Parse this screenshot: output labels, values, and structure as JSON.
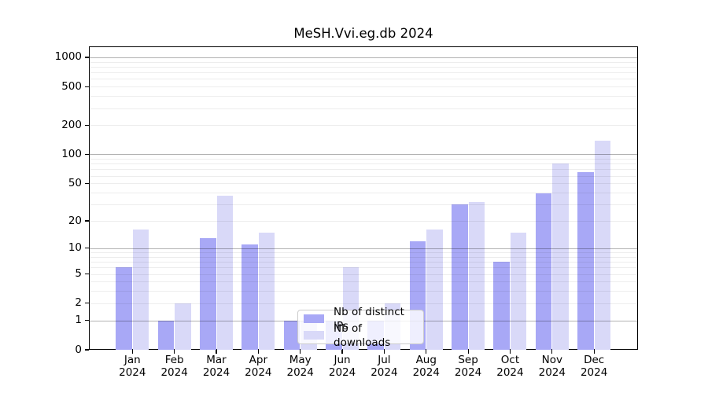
{
  "title": "MeSH.Vvi.eg.db 2024",
  "chart_data": {
    "type": "bar",
    "title": "MeSH.Vvi.eg.db 2024",
    "year": "2024",
    "categories": [
      "Jan",
      "Feb",
      "Mar",
      "Apr",
      "May",
      "Jun",
      "Jul",
      "Aug",
      "Sep",
      "Oct",
      "Nov",
      "Dec"
    ],
    "series": [
      {
        "name": "Nb of distinct IPs",
        "color": "#a8a8f6",
        "values": [
          6,
          1,
          13,
          11,
          1,
          1,
          1,
          12,
          30,
          7,
          39,
          66
        ]
      },
      {
        "name": "Nb of downloads",
        "color": "#d9d9f8",
        "values": [
          16,
          2,
          37,
          15,
          1,
          6,
          2,
          16,
          32,
          15,
          81,
          138
        ]
      }
    ],
    "yscale": "log10(1+x)",
    "yticks": [
      0,
      1,
      2,
      5,
      10,
      20,
      50,
      100,
      200,
      500,
      1000
    ],
    "ylim": [
      0,
      1300
    ],
    "grid": "horizontal; major lines at 1,10,100,1000; minor at 2-9 per decade",
    "legend_position": "lower center inside plot"
  },
  "colors": {
    "background": "#ffffff",
    "axis": "#000000",
    "major_grid": "#b3b3b3",
    "minor_grid": "#e9e9e9",
    "legend_border": "#cccccc",
    "bar_distinct_ips": "#a8a8f6",
    "bar_downloads": "#d9d9f8"
  }
}
